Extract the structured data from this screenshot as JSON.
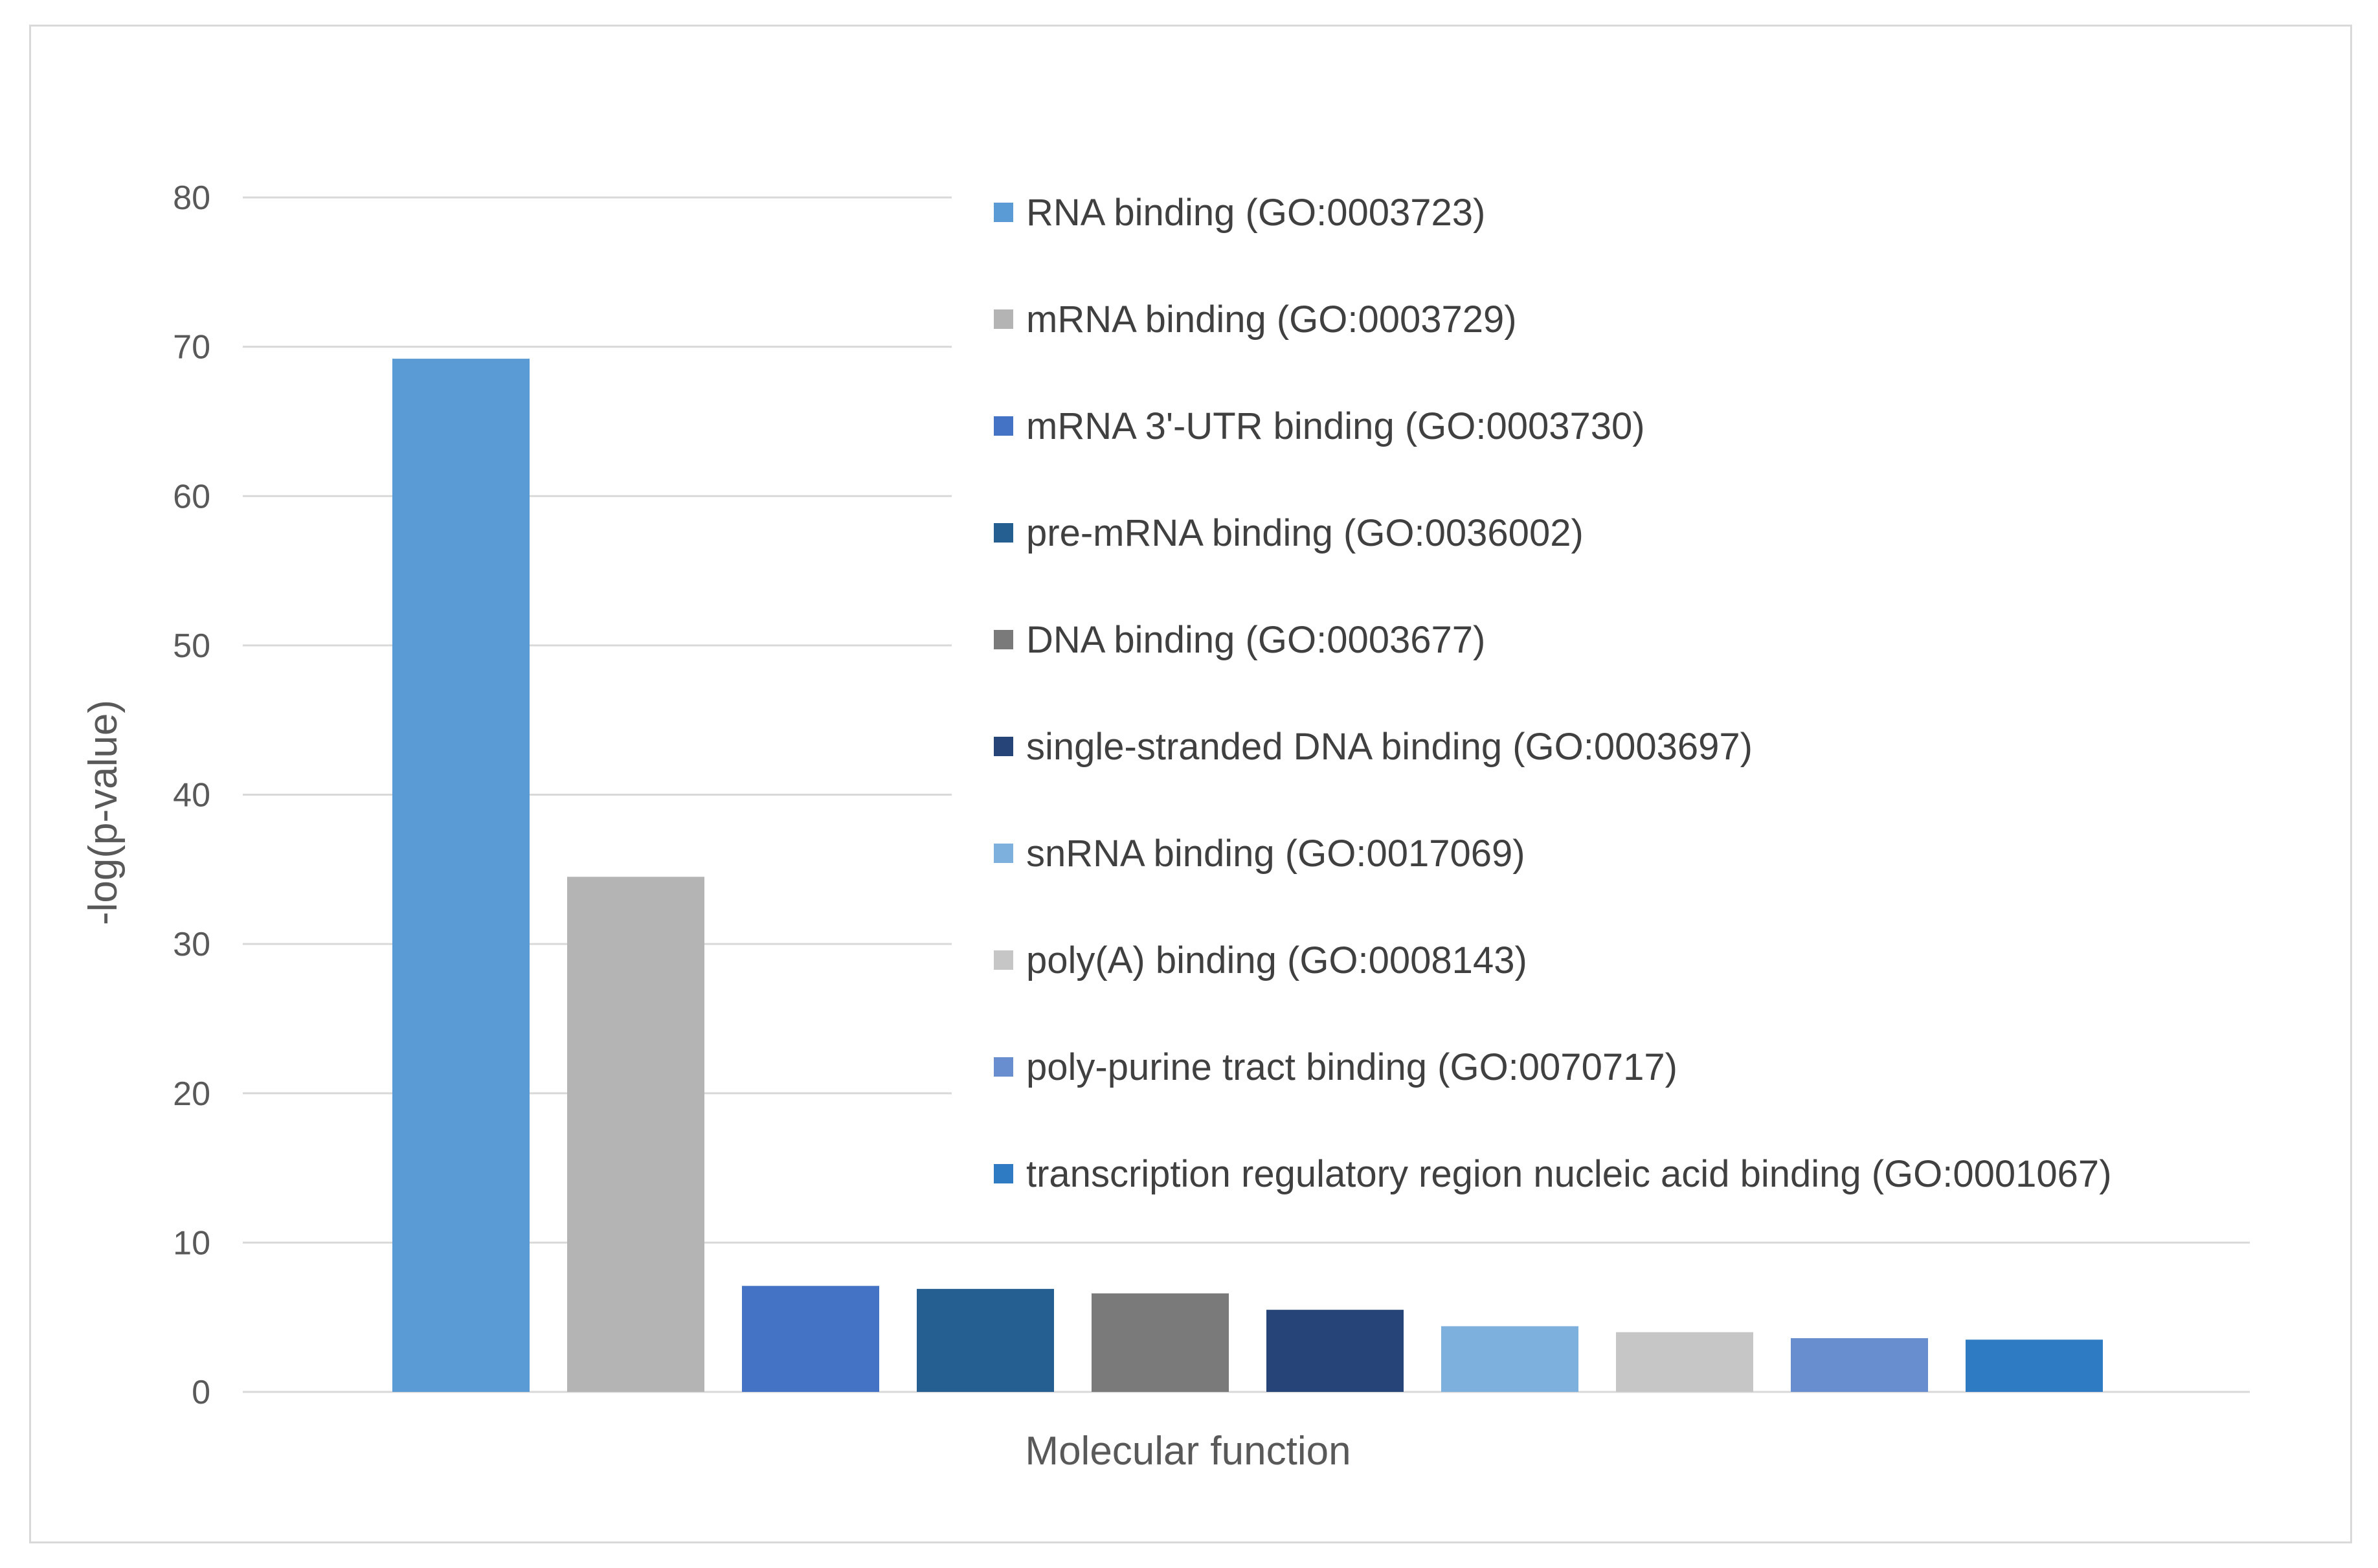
{
  "chart_data": {
    "type": "bar",
    "xlabel": "Molecular function",
    "ylabel": "-log(p-value)",
    "ylim": [
      0,
      80
    ],
    "yticks": [
      0,
      10,
      20,
      30,
      40,
      50,
      60,
      70,
      80
    ],
    "grid": true,
    "legend_position": "top-right",
    "series": [
      {
        "name": "RNA binding (GO:0003723)",
        "value": 69.2,
        "color": "#5B9BD5"
      },
      {
        "name": "mRNA binding (GO:0003729)",
        "value": 34.5,
        "color": "#B4B4B4"
      },
      {
        "name": "mRNA 3'-UTR binding (GO:0003730)",
        "value": 7.1,
        "color": "#4472C4"
      },
      {
        "name": "pre-mRNA binding (GO:0036002)",
        "value": 6.9,
        "color": "#255E91"
      },
      {
        "name": "DNA binding (GO:0003677)",
        "value": 6.6,
        "color": "#7A7A7A"
      },
      {
        "name": "single-stranded DNA binding (GO:0003697)",
        "value": 5.5,
        "color": "#264478"
      },
      {
        "name": "snRNA binding (GO:0017069)",
        "value": 4.4,
        "color": "#7EB0DE"
      },
      {
        "name": "poly(A) binding (GO:0008143)",
        "value": 4.0,
        "color": "#C6C6C6"
      },
      {
        "name": "poly-purine tract binding (GO:0070717)",
        "value": 3.6,
        "color": "#698ED0"
      },
      {
        "name": "transcription regulatory region nucleic acid binding (GO:0001067)",
        "value": 3.5,
        "color": "#2E7BC4"
      }
    ]
  }
}
